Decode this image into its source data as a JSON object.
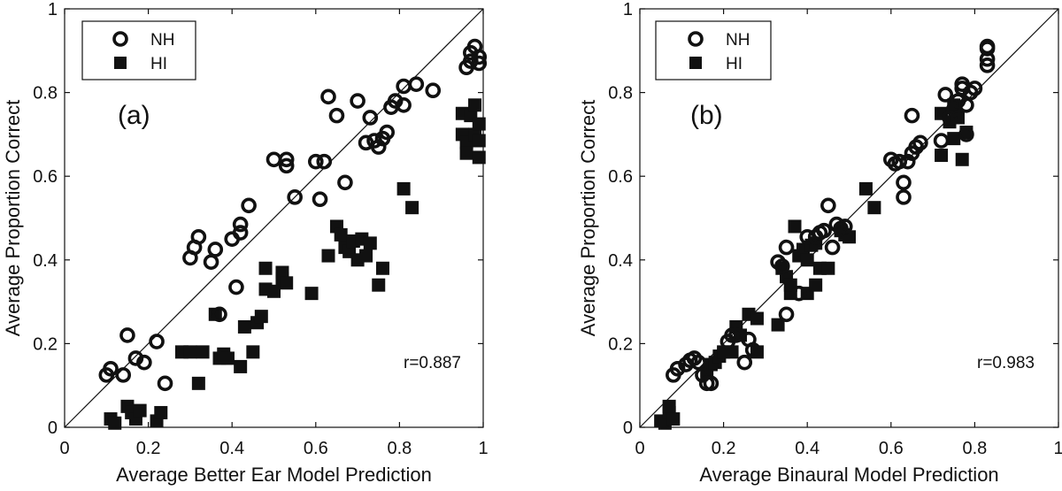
{
  "chart_data": [
    {
      "type": "scatter",
      "panel_label": "(a)",
      "xlabel": "Average Better Ear Model Prediction",
      "ylabel": "Average Proportion Correct",
      "xlim": [
        0,
        1
      ],
      "ylim": [
        0,
        1
      ],
      "xticks": [
        "0",
        "0.2",
        "0.4",
        "0.6",
        "0.8",
        "1"
      ],
      "yticks": [
        "0",
        "0.2",
        "0.4",
        "0.6",
        "0.8",
        "1"
      ],
      "grid": false,
      "legend_position": "top-left",
      "reference_line": "y = x",
      "annotation": "r=0.887",
      "series": [
        {
          "name": "NH",
          "marker": "open-circle",
          "points": [
            [
              0.1,
              0.125
            ],
            [
              0.11,
              0.14
            ],
            [
              0.14,
              0.125
            ],
            [
              0.15,
              0.22
            ],
            [
              0.17,
              0.165
            ],
            [
              0.19,
              0.155
            ],
            [
              0.22,
              0.205
            ],
            [
              0.24,
              0.105
            ],
            [
              0.3,
              0.405
            ],
            [
              0.31,
              0.43
            ],
            [
              0.32,
              0.455
            ],
            [
              0.35,
              0.395
            ],
            [
              0.36,
              0.425
            ],
            [
              0.37,
              0.27
            ],
            [
              0.4,
              0.45
            ],
            [
              0.41,
              0.335
            ],
            [
              0.42,
              0.465
            ],
            [
              0.42,
              0.485
            ],
            [
              0.44,
              0.53
            ],
            [
              0.5,
              0.64
            ],
            [
              0.53,
              0.625
            ],
            [
              0.53,
              0.64
            ],
            [
              0.55,
              0.55
            ],
            [
              0.6,
              0.635
            ],
            [
              0.61,
              0.545
            ],
            [
              0.62,
              0.635
            ],
            [
              0.63,
              0.79
            ],
            [
              0.65,
              0.745
            ],
            [
              0.67,
              0.585
            ],
            [
              0.7,
              0.78
            ],
            [
              0.72,
              0.68
            ],
            [
              0.73,
              0.74
            ],
            [
              0.74,
              0.685
            ],
            [
              0.75,
              0.67
            ],
            [
              0.76,
              0.69
            ],
            [
              0.77,
              0.705
            ],
            [
              0.78,
              0.765
            ],
            [
              0.79,
              0.78
            ],
            [
              0.81,
              0.77
            ],
            [
              0.81,
              0.815
            ],
            [
              0.84,
              0.82
            ],
            [
              0.88,
              0.805
            ],
            [
              0.96,
              0.86
            ],
            [
              0.97,
              0.895
            ],
            [
              0.98,
              0.91
            ],
            [
              0.99,
              0.885
            ],
            [
              0.99,
              0.87
            ],
            [
              0.97,
              0.875
            ]
          ]
        },
        {
          "name": "HI",
          "marker": "filled-square",
          "points": [
            [
              0.11,
              0.02
            ],
            [
              0.12,
              0.01
            ],
            [
              0.15,
              0.05
            ],
            [
              0.16,
              0.035
            ],
            [
              0.17,
              0.02
            ],
            [
              0.18,
              0.04
            ],
            [
              0.22,
              0.015
            ],
            [
              0.23,
              0.035
            ],
            [
              0.28,
              0.18
            ],
            [
              0.3,
              0.18
            ],
            [
              0.32,
              0.105
            ],
            [
              0.33,
              0.18
            ],
            [
              0.36,
              0.27
            ],
            [
              0.37,
              0.165
            ],
            [
              0.38,
              0.175
            ],
            [
              0.39,
              0.165
            ],
            [
              0.42,
              0.145
            ],
            [
              0.43,
              0.24
            ],
            [
              0.45,
              0.18
            ],
            [
              0.46,
              0.25
            ],
            [
              0.47,
              0.265
            ],
            [
              0.48,
              0.33
            ],
            [
              0.48,
              0.38
            ],
            [
              0.5,
              0.325
            ],
            [
              0.52,
              0.355
            ],
            [
              0.52,
              0.37
            ],
            [
              0.53,
              0.345
            ],
            [
              0.59,
              0.32
            ],
            [
              0.63,
              0.41
            ],
            [
              0.65,
              0.48
            ],
            [
              0.66,
              0.46
            ],
            [
              0.67,
              0.43
            ],
            [
              0.68,
              0.42
            ],
            [
              0.69,
              0.445
            ],
            [
              0.7,
              0.4
            ],
            [
              0.71,
              0.45
            ],
            [
              0.72,
              0.41
            ],
            [
              0.73,
              0.44
            ],
            [
              0.75,
              0.34
            ],
            [
              0.76,
              0.38
            ],
            [
              0.81,
              0.57
            ],
            [
              0.83,
              0.525
            ],
            [
              0.95,
              0.75
            ],
            [
              0.95,
              0.7
            ],
            [
              0.96,
              0.68
            ],
            [
              0.96,
              0.655
            ],
            [
              0.97,
              0.745
            ],
            [
              0.98,
              0.77
            ],
            [
              0.98,
              0.7
            ],
            [
              0.99,
              0.725
            ],
            [
              0.99,
              0.645
            ],
            [
              0.99,
              0.685
            ]
          ]
        }
      ]
    },
    {
      "type": "scatter",
      "panel_label": "(b)",
      "xlabel": "Average Binaural Model Prediction",
      "ylabel": "Average Proportion Correct",
      "xlim": [
        0,
        1
      ],
      "ylim": [
        0,
        1
      ],
      "xticks": [
        "0",
        "0.2",
        "0.4",
        "0.6",
        "0.8",
        "1"
      ],
      "yticks": [
        "0",
        "0.2",
        "0.4",
        "0.6",
        "0.8",
        "1"
      ],
      "grid": false,
      "legend_position": "top-left",
      "reference_line": "y = x",
      "annotation": "r=0.983",
      "series": [
        {
          "name": "NH",
          "marker": "open-circle",
          "points": [
            [
              0.08,
              0.125
            ],
            [
              0.09,
              0.14
            ],
            [
              0.11,
              0.15
            ],
            [
              0.12,
              0.16
            ],
            [
              0.13,
              0.165
            ],
            [
              0.14,
              0.155
            ],
            [
              0.15,
              0.125
            ],
            [
              0.16,
              0.105
            ],
            [
              0.17,
              0.105
            ],
            [
              0.21,
              0.205
            ],
            [
              0.22,
              0.22
            ],
            [
              0.23,
              0.22
            ],
            [
              0.25,
              0.155
            ],
            [
              0.26,
              0.21
            ],
            [
              0.27,
              0.185
            ],
            [
              0.33,
              0.395
            ],
            [
              0.34,
              0.385
            ],
            [
              0.35,
              0.27
            ],
            [
              0.35,
              0.43
            ],
            [
              0.38,
              0.32
            ],
            [
              0.4,
              0.455
            ],
            [
              0.42,
              0.455
            ],
            [
              0.43,
              0.465
            ],
            [
              0.44,
              0.47
            ],
            [
              0.45,
              0.53
            ],
            [
              0.46,
              0.43
            ],
            [
              0.47,
              0.485
            ],
            [
              0.48,
              0.475
            ],
            [
              0.49,
              0.48
            ],
            [
              0.6,
              0.64
            ],
            [
              0.61,
              0.63
            ],
            [
              0.62,
              0.635
            ],
            [
              0.63,
              0.585
            ],
            [
              0.63,
              0.55
            ],
            [
              0.64,
              0.635
            ],
            [
              0.65,
              0.745
            ],
            [
              0.65,
              0.655
            ],
            [
              0.66,
              0.67
            ],
            [
              0.67,
              0.68
            ],
            [
              0.72,
              0.685
            ],
            [
              0.73,
              0.795
            ],
            [
              0.74,
              0.74
            ],
            [
              0.75,
              0.76
            ],
            [
              0.76,
              0.78
            ],
            [
              0.77,
              0.81
            ],
            [
              0.77,
              0.82
            ],
            [
              0.78,
              0.7
            ],
            [
              0.78,
              0.77
            ],
            [
              0.79,
              0.8
            ],
            [
              0.8,
              0.81
            ],
            [
              0.83,
              0.905
            ],
            [
              0.83,
              0.91
            ],
            [
              0.83,
              0.88
            ],
            [
              0.83,
              0.865
            ]
          ]
        },
        {
          "name": "HI",
          "marker": "filled-square",
          "points": [
            [
              0.05,
              0.015
            ],
            [
              0.06,
              0.01
            ],
            [
              0.07,
              0.035
            ],
            [
              0.07,
              0.05
            ],
            [
              0.08,
              0.02
            ],
            [
              0.16,
              0.13
            ],
            [
              0.17,
              0.15
            ],
            [
              0.18,
              0.155
            ],
            [
              0.19,
              0.17
            ],
            [
              0.2,
              0.18
            ],
            [
              0.22,
              0.18
            ],
            [
              0.23,
              0.24
            ],
            [
              0.24,
              0.22
            ],
            [
              0.26,
              0.27
            ],
            [
              0.28,
              0.26
            ],
            [
              0.28,
              0.18
            ],
            [
              0.33,
              0.245
            ],
            [
              0.34,
              0.38
            ],
            [
              0.35,
              0.36
            ],
            [
              0.36,
              0.32
            ],
            [
              0.36,
              0.34
            ],
            [
              0.37,
              0.48
            ],
            [
              0.38,
              0.41
            ],
            [
              0.39,
              0.425
            ],
            [
              0.4,
              0.32
            ],
            [
              0.4,
              0.4
            ],
            [
              0.41,
              0.435
            ],
            [
              0.42,
              0.44
            ],
            [
              0.42,
              0.34
            ],
            [
              0.43,
              0.38
            ],
            [
              0.45,
              0.38
            ],
            [
              0.48,
              0.47
            ],
            [
              0.49,
              0.46
            ],
            [
              0.5,
              0.455
            ],
            [
              0.54,
              0.57
            ],
            [
              0.56,
              0.525
            ],
            [
              0.72,
              0.75
            ],
            [
              0.72,
              0.65
            ],
            [
              0.74,
              0.73
            ],
            [
              0.75,
              0.69
            ],
            [
              0.75,
              0.77
            ],
            [
              0.76,
              0.74
            ],
            [
              0.77,
              0.64
            ],
            [
              0.78,
              0.705
            ]
          ]
        }
      ]
    }
  ]
}
